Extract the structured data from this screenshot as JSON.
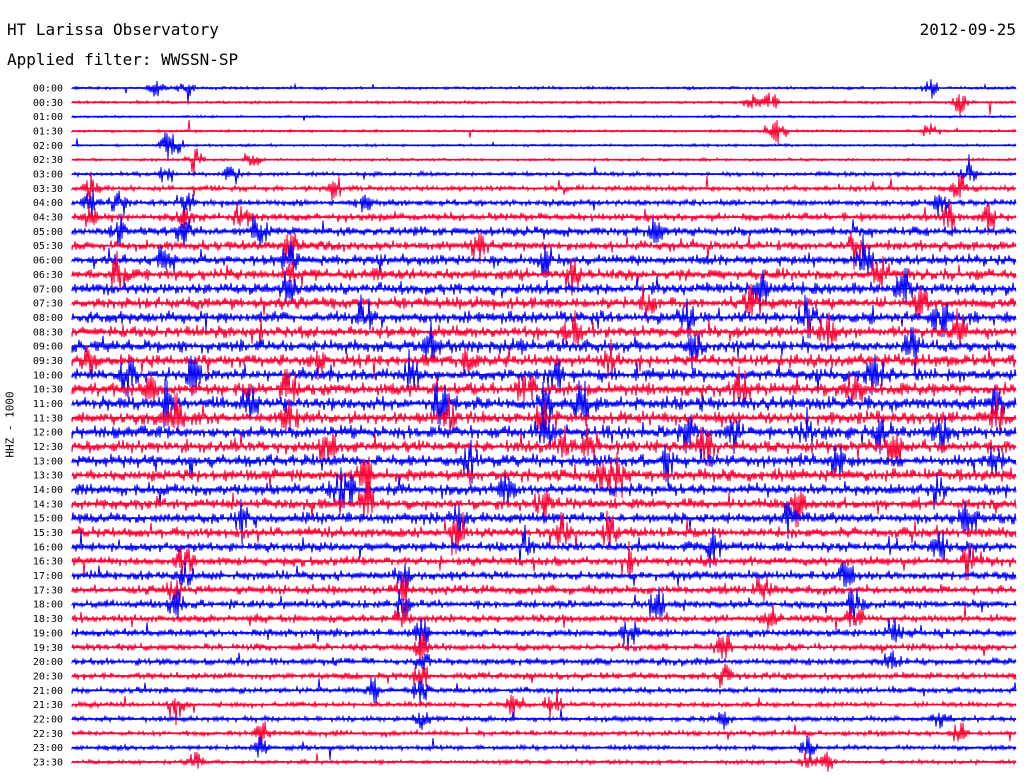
{
  "header": {
    "station": "HT Larissa Observatory",
    "date": "2012-09-25",
    "filter_label": "Applied filter: WWSSN-SP"
  },
  "channel_label": "HHZ - 1000",
  "colors": {
    "even_trace": "#0000ff",
    "odd_trace": "#ff0033"
  },
  "chart_data": {
    "type": "line",
    "title": "HT Larissa Observatory",
    "subtitle": "Applied filter: WWSSN-SP",
    "ylabel": "HHZ - 1000",
    "traces": [
      {
        "label": "00:00",
        "activity": 0.15,
        "events": [
          0.09,
          0.12,
          0.91
        ]
      },
      {
        "label": "00:30",
        "activity": 0.15,
        "events": [
          0.72,
          0.74,
          0.94
        ]
      },
      {
        "label": "01:00",
        "activity": 0.1,
        "events": []
      },
      {
        "label": "01:30",
        "activity": 0.12,
        "events": [
          0.74,
          0.75,
          0.91
        ]
      },
      {
        "label": "02:00",
        "activity": 0.12,
        "events": [
          0.1,
          0.11
        ]
      },
      {
        "label": "02:30",
        "activity": 0.15,
        "events": [
          0.13,
          0.19
        ]
      },
      {
        "label": "03:00",
        "activity": 0.25,
        "events": [
          0.1,
          0.17,
          0.95
        ]
      },
      {
        "label": "03:30",
        "activity": 0.35,
        "events": [
          0.02,
          0.28,
          0.94
        ]
      },
      {
        "label": "04:00",
        "activity": 0.45,
        "events": [
          0.02,
          0.05,
          0.12,
          0.31,
          0.92
        ]
      },
      {
        "label": "04:30",
        "activity": 0.55,
        "events": [
          0.02,
          0.12,
          0.18,
          0.93,
          0.97
        ]
      },
      {
        "label": "05:00",
        "activity": 0.65,
        "events": [
          0.05,
          0.12,
          0.2,
          0.62
        ]
      },
      {
        "label": "05:30",
        "activity": 0.7,
        "events": [
          0.23,
          0.43,
          0.83
        ]
      },
      {
        "label": "06:00",
        "activity": 0.75,
        "events": [
          0.1,
          0.23,
          0.5,
          0.84
        ]
      },
      {
        "label": "06:30",
        "activity": 0.8,
        "events": [
          0.05,
          0.23,
          0.53,
          0.86
        ]
      },
      {
        "label": "07:00",
        "activity": 0.85,
        "events": [
          0.23,
          0.73,
          0.88
        ]
      },
      {
        "label": "07:30",
        "activity": 0.85,
        "events": [
          0.61,
          0.72,
          0.9
        ]
      },
      {
        "label": "08:00",
        "activity": 0.9,
        "events": [
          0.31,
          0.65,
          0.78,
          0.92
        ]
      },
      {
        "label": "08:30",
        "activity": 0.85,
        "events": [
          0.53,
          0.8,
          0.94
        ]
      },
      {
        "label": "09:00",
        "activity": 0.9,
        "events": [
          0.38,
          0.66,
          0.89
        ]
      },
      {
        "label": "09:30",
        "activity": 0.95,
        "events": [
          0.02,
          0.26,
          0.42,
          0.57
        ]
      },
      {
        "label": "10:00",
        "activity": 0.95,
        "events": [
          0.06,
          0.13,
          0.36,
          0.51,
          0.85
        ]
      },
      {
        "label": "10:30",
        "activity": 0.95,
        "events": [
          0.08,
          0.23,
          0.48,
          0.71,
          0.83
        ]
      },
      {
        "label": "11:00",
        "activity": 1.0,
        "events": [
          0.1,
          0.19,
          0.39,
          0.5,
          0.54,
          0.98
        ]
      },
      {
        "label": "11:30",
        "activity": 0.95,
        "events": [
          0.11,
          0.23,
          0.4,
          0.5,
          0.98
        ]
      },
      {
        "label": "12:00",
        "activity": 0.95,
        "events": [
          0.5,
          0.65,
          0.7,
          0.78,
          0.86,
          0.92
        ]
      },
      {
        "label": "12:30",
        "activity": 0.9,
        "events": [
          0.27,
          0.52,
          0.55,
          0.67,
          0.87
        ]
      },
      {
        "label": "13:00",
        "activity": 0.9,
        "events": [
          0.42,
          0.63,
          0.81,
          0.98
        ]
      },
      {
        "label": "13:30",
        "activity": 0.9,
        "events": [
          0.31,
          0.56,
          0.57,
          0.58
        ]
      },
      {
        "label": "14:00",
        "activity": 0.85,
        "events": [
          0.28,
          0.29,
          0.46,
          0.92
        ]
      },
      {
        "label": "14:30",
        "activity": 0.8,
        "events": [
          0.31,
          0.5,
          0.77
        ]
      },
      {
        "label": "15:00",
        "activity": 0.8,
        "events": [
          0.18,
          0.41,
          0.76,
          0.95
        ]
      },
      {
        "label": "15:30",
        "activity": 0.75,
        "events": [
          0.41,
          0.52,
          0.57
        ]
      },
      {
        "label": "16:00",
        "activity": 0.7,
        "events": [
          0.48,
          0.68,
          0.92
        ]
      },
      {
        "label": "16:30",
        "activity": 0.65,
        "events": [
          0.12,
          0.59,
          0.95
        ]
      },
      {
        "label": "17:00",
        "activity": 0.65,
        "events": [
          0.12,
          0.35,
          0.82
        ]
      },
      {
        "label": "17:30",
        "activity": 0.65,
        "events": [
          0.11,
          0.35,
          0.73
        ]
      },
      {
        "label": "18:00",
        "activity": 0.6,
        "events": [
          0.11,
          0.35,
          0.62,
          0.83
        ]
      },
      {
        "label": "18:30",
        "activity": 0.55,
        "events": [
          0.35,
          0.74,
          0.83
        ]
      },
      {
        "label": "19:00",
        "activity": 0.55,
        "events": [
          0.37,
          0.59,
          0.87
        ]
      },
      {
        "label": "19:30",
        "activity": 0.5,
        "events": [
          0.37,
          0.69
        ]
      },
      {
        "label": "20:00",
        "activity": 0.5,
        "events": [
          0.37,
          0.87
        ]
      },
      {
        "label": "20:30",
        "activity": 0.45,
        "events": [
          0.37,
          0.69
        ]
      },
      {
        "label": "21:00",
        "activity": 0.4,
        "events": [
          0.32,
          0.37
        ]
      },
      {
        "label": "21:30",
        "activity": 0.35,
        "events": [
          0.11,
          0.47,
          0.51
        ]
      },
      {
        "label": "22:00",
        "activity": 0.35,
        "events": [
          0.37,
          0.69,
          0.92
        ]
      },
      {
        "label": "22:30",
        "activity": 0.35,
        "events": [
          0.2,
          0.94
        ]
      },
      {
        "label": "23:00",
        "activity": 0.3,
        "events": [
          0.2,
          0.78
        ]
      },
      {
        "label": "23:30",
        "activity": 0.25,
        "events": [
          0.13,
          0.78,
          0.8
        ]
      }
    ]
  }
}
